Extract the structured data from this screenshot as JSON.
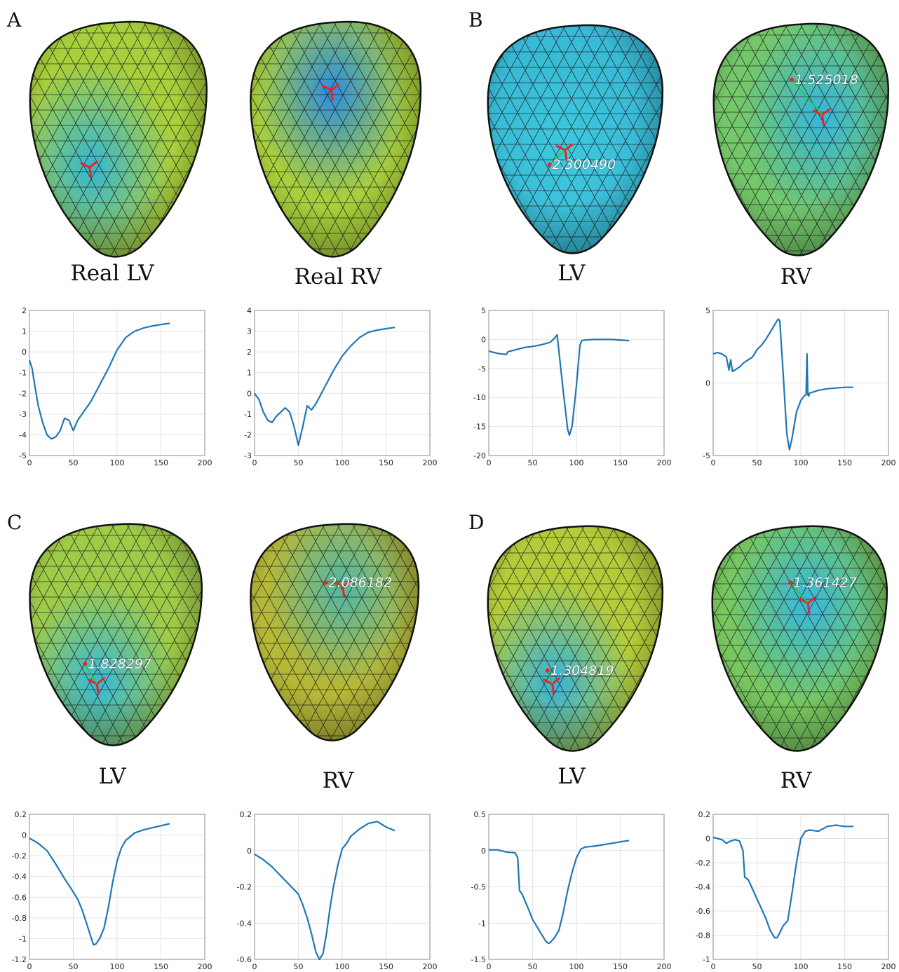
{
  "panels": [
    {
      "letter": "A",
      "left_caption": "Real LV",
      "right_caption": "Real RV"
    },
    {
      "letter": "B",
      "left_caption": "LV",
      "right_caption": "RV"
    },
    {
      "letter": "C",
      "left_caption": "LV",
      "right_caption": "RV"
    },
    {
      "letter": "D",
      "left_caption": "LV",
      "right_caption": "RV"
    }
  ],
  "hearts": [
    {
      "id": "A-LV",
      "base": "#a8cf3c",
      "accent": "#33b7d6",
      "label": ""
    },
    {
      "id": "A-RV",
      "base": "#a8cf3c",
      "accent": "#2c8de0",
      "label": ""
    },
    {
      "id": "B-LV",
      "base": "#39bad6",
      "accent": "#3ec9df",
      "label": "2.300490"
    },
    {
      "id": "B-RV",
      "base": "#74c76a",
      "accent": "#34b5de",
      "label": "1.525018"
    },
    {
      "id": "C-LV",
      "base": "#9fcc48",
      "accent": "#35b9d8",
      "label": "1.828297"
    },
    {
      "id": "C-RV",
      "base": "#b6b838",
      "accent": "#4fb8a8",
      "label": "2.086182"
    },
    {
      "id": "D-LV",
      "base": "#b4cc3a",
      "accent": "#33b3dc",
      "label": "1.304819"
    },
    {
      "id": "D-RV",
      "base": "#78c75f",
      "accent": "#36b8de",
      "label": "1.361427"
    }
  ],
  "chart_data": [
    {
      "id": "A-LV",
      "type": "line",
      "xlim": [
        0,
        200
      ],
      "ylim": [
        -5,
        2
      ],
      "xticks": [
        "0",
        "50",
        "100",
        "150",
        "200"
      ],
      "yticks": [
        "2",
        "1",
        "0",
        "-1",
        "-2",
        "-3",
        "-4",
        "-5"
      ],
      "grid": true,
      "color": "#1f77b4",
      "x": [
        0,
        3,
        6,
        10,
        15,
        20,
        25,
        30,
        35,
        40,
        45,
        50,
        55,
        60,
        70,
        80,
        90,
        100,
        110,
        120,
        130,
        140,
        150,
        160
      ],
      "y": [
        -0.4,
        -0.8,
        -1.6,
        -2.6,
        -3.4,
        -4.0,
        -4.2,
        -4.1,
        -3.8,
        -3.2,
        -3.3,
        -3.8,
        -3.3,
        -3.0,
        -2.4,
        -1.6,
        -0.8,
        0.1,
        0.7,
        1.0,
        1.15,
        1.25,
        1.32,
        1.38
      ]
    },
    {
      "id": "A-RV",
      "type": "line",
      "xlim": [
        0,
        200
      ],
      "ylim": [
        -3,
        4
      ],
      "xticks": [
        "0",
        "50",
        "100",
        "150",
        "200"
      ],
      "yticks": [
        "4",
        "3",
        "2",
        "1",
        "0",
        "-1",
        "-2",
        "-3"
      ],
      "grid": true,
      "color": "#1f77b4",
      "x": [
        0,
        5,
        10,
        15,
        20,
        25,
        30,
        35,
        40,
        45,
        50,
        55,
        60,
        65,
        70,
        80,
        90,
        100,
        110,
        120,
        130,
        140,
        150,
        160
      ],
      "y": [
        0,
        -0.3,
        -0.9,
        -1.3,
        -1.4,
        -1.1,
        -0.9,
        -0.7,
        -0.9,
        -1.6,
        -2.5,
        -1.6,
        -0.6,
        -0.8,
        -0.5,
        0.3,
        1.1,
        1.8,
        2.3,
        2.7,
        2.95,
        3.05,
        3.12,
        3.18
      ]
    },
    {
      "id": "B-LV",
      "type": "line",
      "xlim": [
        0,
        200
      ],
      "ylim": [
        -20,
        5
      ],
      "xticks": [
        "0",
        "50",
        "100",
        "150",
        "200"
      ],
      "yticks": [
        "5",
        "0",
        "-5",
        "-10",
        "-15",
        "-20"
      ],
      "grid": true,
      "color": "#1f77b4",
      "x": [
        0,
        10,
        20,
        22,
        30,
        40,
        50,
        60,
        70,
        75,
        78,
        80,
        85,
        90,
        92,
        95,
        100,
        104,
        106,
        110,
        120,
        140,
        160
      ],
      "y": [
        -2.0,
        -2.4,
        -2.6,
        -2.1,
        -1.8,
        -1.4,
        -1.2,
        -0.9,
        -0.5,
        0.2,
        0.8,
        -2.0,
        -9.0,
        -15.5,
        -16.5,
        -15.0,
        -8.0,
        -1.0,
        -0.2,
        -0.1,
        0,
        0,
        -0.2
      ]
    },
    {
      "id": "B-RV",
      "type": "line",
      "xlim": [
        0,
        200
      ],
      "ylim": [
        -5,
        5
      ],
      "xticks": [
        "0",
        "50",
        "100",
        "150",
        "200"
      ],
      "yticks": [
        "5",
        "0",
        "-5"
      ],
      "grid": true,
      "color": "#1f77b4",
      "x": [
        0,
        5,
        10,
        15,
        18,
        20,
        22,
        25,
        30,
        35,
        40,
        45,
        50,
        55,
        60,
        65,
        70,
        74,
        76,
        80,
        84,
        87,
        90,
        95,
        100,
        104,
        106,
        107,
        108,
        109,
        110,
        120,
        130,
        140,
        150,
        160
      ],
      "y": [
        2.0,
        2.1,
        2.0,
        1.8,
        0.9,
        1.6,
        0.8,
        0.9,
        1.1,
        1.4,
        1.6,
        1.8,
        2.3,
        2.6,
        3.0,
        3.5,
        4.0,
        4.4,
        4.3,
        0.5,
        -3.5,
        -4.6,
        -3.8,
        -2.0,
        -1.2,
        -0.9,
        -0.8,
        2.0,
        -0.8,
        -0.9,
        -0.7,
        -0.5,
        -0.4,
        -0.35,
        -0.3,
        -0.3
      ]
    },
    {
      "id": "C-LV",
      "type": "line",
      "xlim": [
        0,
        200
      ],
      "ylim": [
        -1.2,
        0.2
      ],
      "xticks": [
        "0",
        "50",
        "100",
        "150",
        "200"
      ],
      "yticks": [
        "0.2",
        "0",
        "-0.2",
        "-0.4",
        "-0.6",
        "-0.8",
        "-1",
        "-1.2"
      ],
      "grid": true,
      "color": "#1f77b4",
      "x": [
        0,
        10,
        20,
        30,
        40,
        50,
        55,
        60,
        65,
        70,
        73,
        76,
        80,
        85,
        90,
        95,
        100,
        105,
        110,
        120,
        130,
        140,
        150,
        160
      ],
      "y": [
        -0.03,
        -0.08,
        -0.15,
        -0.28,
        -0.42,
        -0.55,
        -0.62,
        -0.72,
        -0.85,
        -0.98,
        -1.06,
        -1.05,
        -1.0,
        -0.9,
        -0.7,
        -0.45,
        -0.25,
        -0.12,
        -0.05,
        0.02,
        0.05,
        0.07,
        0.09,
        0.11
      ]
    },
    {
      "id": "C-RV",
      "type": "line",
      "xlim": [
        0,
        200
      ],
      "ylim": [
        -0.6,
        0.2
      ],
      "xticks": [
        "0",
        "50",
        "100",
        "150",
        "200"
      ],
      "yticks": [
        "0.2",
        "0",
        "-0.2",
        "-0.4",
        "-0.6"
      ],
      "grid": true,
      "color": "#1f77b4",
      "x": [
        0,
        10,
        20,
        30,
        40,
        50,
        55,
        60,
        65,
        70,
        74,
        78,
        82,
        86,
        90,
        95,
        100,
        105,
        110,
        120,
        130,
        140,
        150,
        160
      ],
      "y": [
        -0.02,
        -0.05,
        -0.09,
        -0.14,
        -0.19,
        -0.24,
        -0.3,
        -0.37,
        -0.46,
        -0.56,
        -0.6,
        -0.57,
        -0.46,
        -0.32,
        -0.2,
        -0.08,
        0.01,
        0.04,
        0.08,
        0.12,
        0.15,
        0.16,
        0.13,
        0.11
      ]
    },
    {
      "id": "D-LV",
      "type": "line",
      "xlim": [
        0,
        200
      ],
      "ylim": [
        -1.5,
        0.5
      ],
      "xticks": [
        "0",
        "50",
        "100",
        "150",
        "200"
      ],
      "yticks": [
        "0.5",
        "0",
        "-0.5",
        "-1",
        "-1.5"
      ],
      "grid": true,
      "color": "#1f77b4",
      "x": [
        0,
        10,
        20,
        30,
        33,
        35,
        38,
        45,
        50,
        55,
        60,
        65,
        68,
        70,
        75,
        80,
        85,
        90,
        95,
        100,
        105,
        110,
        120,
        130,
        140,
        150,
        160
      ],
      "y": [
        0.01,
        0.01,
        -0.02,
        -0.03,
        -0.1,
        -0.55,
        -0.6,
        -0.8,
        -0.95,
        -1.05,
        -1.15,
        -1.25,
        -1.28,
        -1.27,
        -1.2,
        -1.1,
        -0.85,
        -0.55,
        -0.3,
        -0.1,
        0.02,
        0.05,
        0.06,
        0.08,
        0.1,
        0.12,
        0.14
      ]
    },
    {
      "id": "D-RV",
      "type": "line",
      "xlim": [
        0,
        200
      ],
      "ylim": [
        -1,
        0.2
      ],
      "xticks": [
        "0",
        "50",
        "100",
        "150",
        "200"
      ],
      "yticks": [
        "0.2",
        "0",
        "-0.2",
        "-0.4",
        "-0.6",
        "-0.8",
        "-1"
      ],
      "grid": true,
      "color": "#1f77b4",
      "x": [
        0,
        10,
        15,
        20,
        25,
        30,
        34,
        36,
        40,
        45,
        50,
        55,
        60,
        65,
        70,
        73,
        76,
        80,
        85,
        90,
        95,
        100,
        105,
        110,
        120,
        130,
        140,
        150,
        160
      ],
      "y": [
        0.01,
        -0.01,
        -0.04,
        -0.02,
        -0.01,
        -0.02,
        -0.1,
        -0.32,
        -0.34,
        -0.42,
        -0.5,
        -0.58,
        -0.66,
        -0.76,
        -0.82,
        -0.82,
        -0.78,
        -0.72,
        -0.68,
        -0.45,
        -0.2,
        0.0,
        0.06,
        0.07,
        0.06,
        0.1,
        0.11,
        0.1,
        0.1
      ]
    }
  ]
}
